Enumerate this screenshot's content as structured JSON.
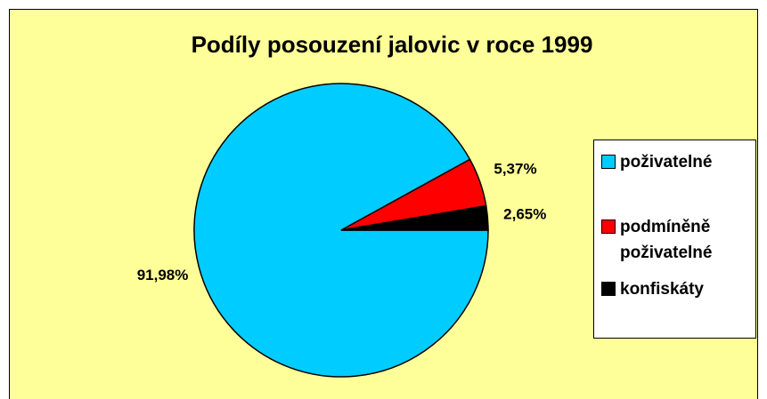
{
  "chart_data": {
    "type": "pie",
    "title": "Podíly posouzení jalovic v roce 1999",
    "categories": [
      "poživatelné",
      "podmíněně poživatelné",
      "konfiskáty"
    ],
    "values": [
      91.98,
      5.37,
      2.65
    ],
    "value_labels": [
      "91,98%",
      "5,37%",
      "2,65%"
    ],
    "colors": [
      "#00ccff",
      "#ff0000",
      "#000000"
    ],
    "legend": "right"
  }
}
